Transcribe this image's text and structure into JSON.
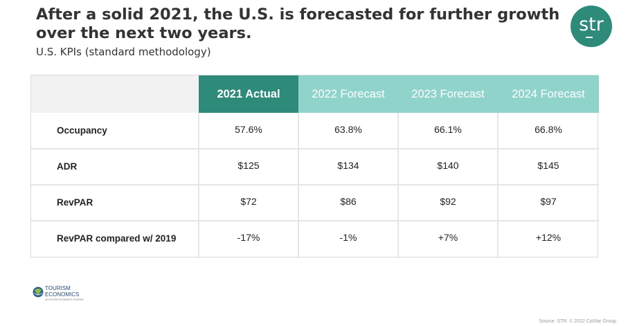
{
  "title": "After a solid 2021, the U.S. is forecasted for further growth over the next two years.",
  "subtitle": "U.S. KPIs (standard methodology)",
  "brand": {
    "logo_text": "str",
    "primary_color": "#2e8b7a",
    "secondary_color": "#8fd3cb"
  },
  "chart_data": {
    "type": "table",
    "title": "U.S. KPIs (standard methodology)",
    "columns": [
      "2021 Actual",
      "2022 Forecast",
      "2023 Forecast",
      "2024 Forecast"
    ],
    "rows": [
      {
        "label": "Occupancy",
        "values": [
          "57.6%",
          "63.8%",
          "66.1%",
          "66.8%"
        ]
      },
      {
        "label": "ADR",
        "values": [
          "$125",
          "$134",
          "$140",
          "$145"
        ]
      },
      {
        "label": "RevPAR",
        "values": [
          "$72",
          "$86",
          "$92",
          "$97"
        ]
      },
      {
        "label": "RevPAR compared w/ 2019",
        "values": [
          "-17%",
          "-1%",
          "+7%",
          "+12%"
        ]
      }
    ]
  },
  "footer": {
    "partner_line1": "TOURISM",
    "partner_line2": "ECONOMICS",
    "partner_tagline": "AN OXFORD ECONOMICS COMPANY",
    "source": "Source: STR. © 2022 CoStar Group"
  }
}
